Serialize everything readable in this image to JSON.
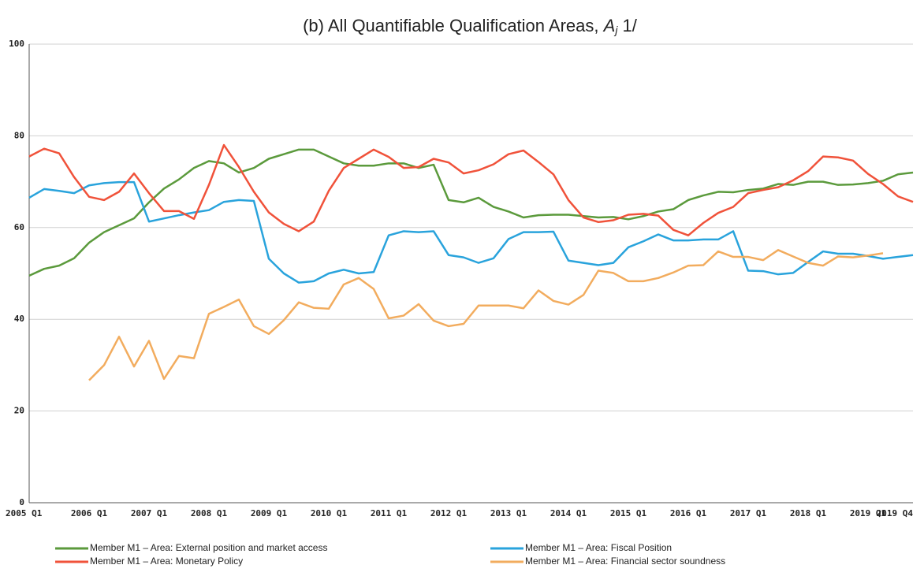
{
  "chart_data": {
    "type": "line",
    "title": "(b) All Quantifiable Qualification Areas, ",
    "title_symbol": "A",
    "title_subscript": "j",
    "title_suffix": " 1/",
    "categories": [
      "2005 Q1",
      null,
      null,
      null,
      "2006 Q1",
      null,
      null,
      null,
      "2007 Q1",
      null,
      null,
      null,
      "2008 Q1",
      null,
      null,
      null,
      "2009 Q1",
      null,
      null,
      null,
      "2010 Q1",
      null,
      null,
      null,
      "2011 Q1",
      null,
      null,
      null,
      "2012 Q1",
      null,
      null,
      null,
      "2013 Q1",
      null,
      null,
      null,
      "2014 Q1",
      null,
      null,
      null,
      "2015 Q1",
      null,
      null,
      null,
      "2016 Q1",
      null,
      null,
      null,
      "2017 Q1",
      null,
      null,
      null,
      "2018 Q1",
      null,
      null,
      null,
      "2019 Q1",
      null,
      null,
      "2019 Q4"
    ],
    "ylim": [
      0,
      100
    ],
    "yticks": [
      0,
      20,
      40,
      60,
      80,
      100
    ],
    "grid": true,
    "legend": "bottom",
    "series": [
      {
        "name": "Member M1 – Area: External position and market access",
        "color": "#5b9a3c",
        "values": [
          49.5,
          51,
          51.7,
          53.3,
          56.7,
          59,
          60.5,
          62,
          65.5,
          68.5,
          70.5,
          73,
          74.5,
          74,
          72,
          73,
          75,
          76,
          77,
          77,
          75.5,
          74,
          73.5,
          73.5,
          74,
          74,
          73,
          73.7,
          66,
          65.5,
          66.5,
          64.5,
          63.5,
          62.2,
          62.7,
          62.8,
          62.8,
          62.5,
          62.2,
          62.3,
          61.8,
          62.5,
          63.5,
          64,
          66,
          67,
          67.8,
          67.7,
          68.2,
          68.5,
          69.5,
          69.3,
          70,
          70,
          69.3,
          69.4,
          69.7,
          70.2,
          71.6,
          72
        ]
      },
      {
        "name": "Member M1 – Area: Fiscal Position",
        "color": "#29a3dc",
        "values": [
          66.5,
          68.4,
          68,
          67.5,
          69.2,
          69.7,
          69.9,
          69.9,
          61.3,
          62,
          62.7,
          63.3,
          63.8,
          65.6,
          66,
          65.8,
          53.2,
          50,
          48,
          48.3,
          50,
          50.8,
          50,
          50.3,
          58.3,
          59.2,
          59,
          59.2,
          54,
          53.5,
          52.3,
          53.3,
          57.5,
          59,
          59,
          59.1,
          52.8,
          52.3,
          51.8,
          52.3,
          55.7,
          57,
          58.5,
          57.2,
          57.2,
          57.4,
          57.4,
          59.2,
          50.6,
          50.5,
          49.8,
          50.1,
          52.5,
          54.8,
          54.3,
          54.3,
          53.8,
          53.2,
          53.6,
          54
        ]
      },
      {
        "name": "Member M1 – Area: Monetary Policy",
        "color": "#f0523a",
        "values": [
          75.5,
          77.2,
          76.2,
          71,
          66.7,
          66,
          67.8,
          71.8,
          67.5,
          63.6,
          63.6,
          61.9,
          69.3,
          78,
          73.2,
          67.8,
          63.3,
          60.8,
          59.2,
          61.3,
          68,
          73,
          75,
          77,
          75.4,
          73,
          73.2,
          75,
          74.2,
          71.8,
          72.5,
          73.8,
          76,
          76.8,
          74.3,
          71.6,
          66,
          62.2,
          61.2,
          61.6,
          62.8,
          63,
          62.6,
          59.5,
          58.3,
          61,
          63.2,
          64.5,
          67.5,
          68.2,
          68.8,
          70.3,
          72.3,
          75.5,
          75.3,
          74.6,
          71.7,
          69.5,
          66.8,
          65.6
        ]
      },
      {
        "name": "Member M1 – Area: Financial sector soundness",
        "color": "#f2ac5e",
        "values": [
          null,
          null,
          null,
          null,
          26.7,
          30,
          36.2,
          29.7,
          35.3,
          27,
          32,
          31.5,
          41.2,
          42.7,
          44.3,
          38.5,
          36.8,
          39.8,
          43.7,
          42.5,
          42.3,
          47.6,
          49,
          46.6,
          40.2,
          40.8,
          43.3,
          39.7,
          38.5,
          39,
          43,
          43,
          43,
          42.4,
          46.3,
          44,
          43.2,
          45.3,
          50.6,
          50.1,
          48.3,
          48.3,
          49,
          50.2,
          51.7,
          51.8,
          54.8,
          53.6,
          53.6,
          52.9,
          55.1,
          53.7,
          52.3,
          51.7,
          53.7,
          53.5,
          53.9,
          54.4,
          null,
          null
        ]
      }
    ]
  }
}
